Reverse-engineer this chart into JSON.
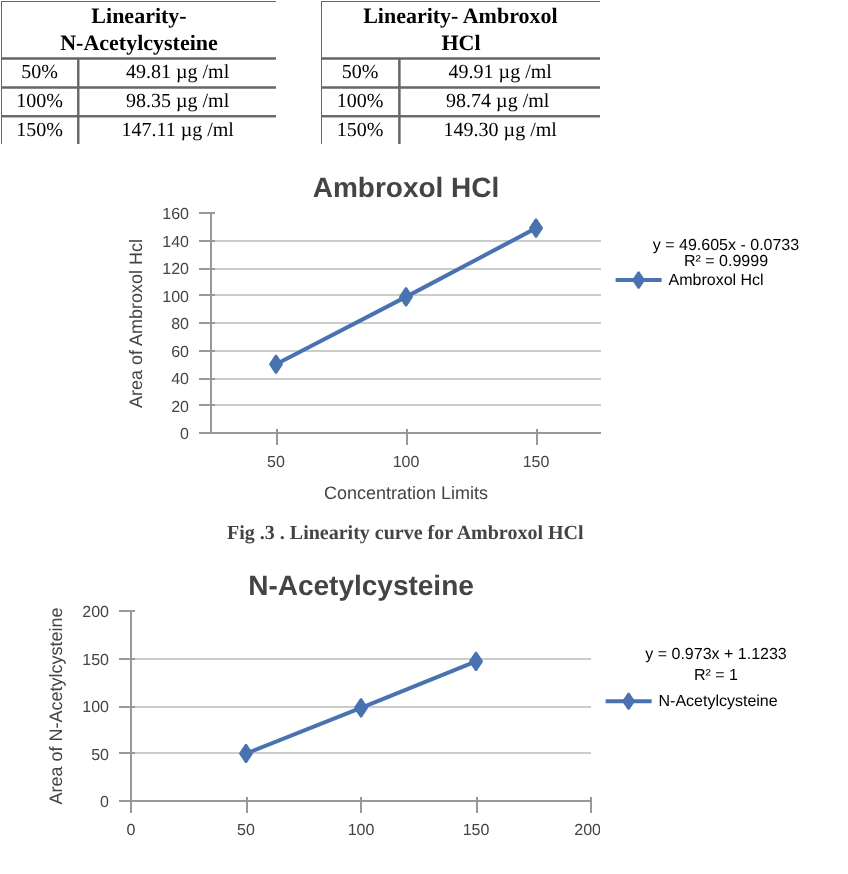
{
  "chart_data": [
    {
      "type": "other",
      "title": "Linearity- N-Acetylcysteine",
      "categories": [
        "50%",
        "100%",
        "150%"
      ],
      "value_labels": [
        "49.81 µg /ml",
        "98.35 µg /ml",
        "147.11 µg /ml"
      ]
    },
    {
      "type": "other",
      "title": "Linearity- Ambroxol HCl",
      "categories": [
        "50%",
        "100%",
        "150%"
      ],
      "value_labels": [
        "49.91 µg /ml",
        "98.74 µg  /ml",
        "149.30 µg /ml"
      ]
    },
    {
      "type": "line",
      "title": "Ambroxol HCl",
      "xlabel": "Concentration Limits",
      "ylabel": "Area of Ambroxol Hcl",
      "categories": [
        "50",
        "100",
        "150"
      ],
      "series": [
        {
          "name": "Ambroxol Hcl",
          "color": "#4a72b0",
          "values": [
            50,
            99,
            149
          ]
        }
      ],
      "ylim": [
        0,
        160
      ],
      "yticks": [
        0,
        20,
        40,
        60,
        80,
        100,
        120,
        140,
        160
      ],
      "grid": "y",
      "legend": "right",
      "marker": "diamond",
      "annotations": [
        "y = 49.605x - 0.0733",
        "R² = 0.9999",
        "Fig .3 . Linearity curve for Ambroxol HCl"
      ]
    },
    {
      "type": "line",
      "title": "N-Acetylcysteine",
      "ylabel": "Area of N-Acetylcysteine",
      "x": [
        50,
        100,
        150
      ],
      "series": [
        {
          "name": "N-Acetylcysteine",
          "color": "#4a72b0",
          "values": [
            50,
            98,
            147
          ]
        }
      ],
      "xlim": [
        0,
        200
      ],
      "xticks": [
        0,
        50,
        100,
        150,
        200
      ],
      "ylim": [
        0,
        200
      ],
      "yticks": [
        0,
        50,
        100,
        150,
        200
      ],
      "grid": "y",
      "legend": "right",
      "marker": "diamond",
      "annotations": [
        "y = 0.973x + 1.1233",
        "R² = 1"
      ]
    }
  ]
}
